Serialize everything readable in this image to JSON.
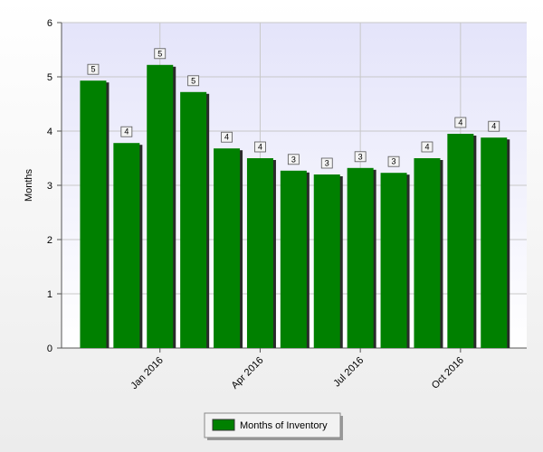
{
  "chart_data": {
    "type": "bar",
    "y_label": "Months",
    "categories": [
      null,
      null,
      "Jan 2016",
      null,
      null,
      "Apr 2016",
      null,
      null,
      "Jul 2016",
      null,
      null,
      "Oct 2016",
      null
    ],
    "series": [
      {
        "name": "Months of Inventory",
        "color": "#008000",
        "values": [
          4.93,
          3.78,
          5.22,
          4.72,
          3.68,
          3.5,
          3.27,
          3.2,
          3.32,
          3.23,
          3.5,
          3.95,
          3.88
        ],
        "value_labels": [
          "5",
          "4",
          "5",
          "5",
          "4",
          "4",
          "3",
          "3",
          "3",
          "3",
          "4",
          "4",
          "4"
        ]
      }
    ],
    "ylim": [
      0,
      6
    ],
    "yticks": [
      0,
      1,
      2,
      3,
      4,
      5,
      6
    ],
    "grid": true
  }
}
